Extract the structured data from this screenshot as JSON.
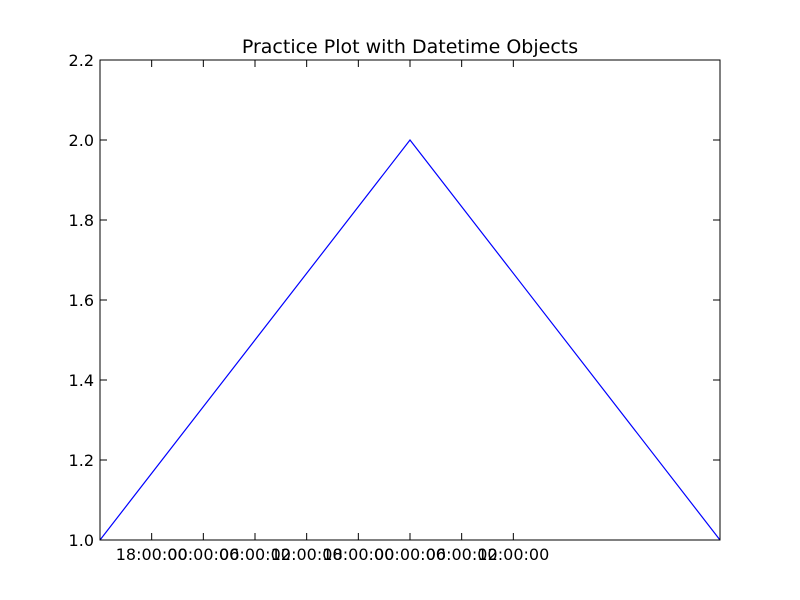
{
  "chart_data": {
    "type": "line",
    "title": "Practice Plot with Datetime Objects",
    "xlabel": "",
    "ylabel": "",
    "x": [
      "2018-01-01T12:00:00",
      "2018-01-03T00:00:00",
      "2018-01-04T12:00:00"
    ],
    "series": [
      {
        "color": "#0000ff",
        "values": [
          1.0,
          2.0,
          1.0
        ]
      }
    ],
    "xlim": [
      "2018-01-01T12:00:00",
      "2018-01-04T12:00:00"
    ],
    "ylim": [
      1.0,
      2.2
    ],
    "x_ticks": [
      "2018-01-01T18:00:00",
      "2018-01-02T00:00:00",
      "2018-01-02T06:00:00",
      "2018-01-02T12:00:00",
      "2018-01-02T18:00:00",
      "2018-01-03T00:00:00",
      "2018-01-03T06:00:00",
      "2018-01-03T12:00:00"
    ],
    "x_tick_labels": [
      "18:00:00",
      "00:00:00",
      "06:00:00",
      "12:00:00",
      "18:00:00",
      "00:00:00",
      "06:00:00",
      "12:00:00"
    ],
    "y_ticks": [
      1.0,
      1.2,
      1.4,
      1.6,
      1.8,
      2.0,
      2.2
    ],
    "y_tick_labels": [
      "1.0",
      "1.2",
      "1.4",
      "1.6",
      "1.8",
      "2.0",
      "2.2"
    ],
    "grid": false,
    "legend": "none"
  }
}
